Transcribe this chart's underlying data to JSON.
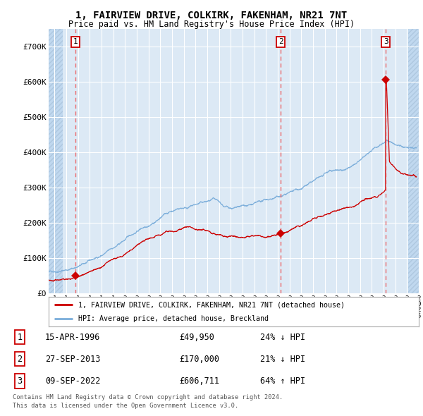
{
  "title": "1, FAIRVIEW DRIVE, COLKIRK, FAKENHAM, NR21 7NT",
  "subtitle": "Price paid vs. HM Land Registry's House Price Index (HPI)",
  "ylim": [
    0,
    750000
  ],
  "yticks": [
    0,
    100000,
    200000,
    300000,
    400000,
    500000,
    600000,
    700000
  ],
  "ytick_labels": [
    "£0",
    "£100K",
    "£200K",
    "£300K",
    "£400K",
    "£500K",
    "£600K",
    "£700K"
  ],
  "xlim_start": 1994.0,
  "xlim_end": 2025.5,
  "background_color": "#ffffff",
  "plot_bg_color": "#dce9f5",
  "grid_color": "#ffffff",
  "hatch_color": "#c0d8ef",
  "sale_dates": [
    1996.29,
    2013.74,
    2022.69
  ],
  "sale_prices": [
    49950,
    170000,
    606711
  ],
  "sale_labels": [
    "1",
    "2",
    "3"
  ],
  "red_line_color": "#cc0000",
  "blue_line_color": "#7aadda",
  "marker_color": "#cc0000",
  "dashed_line_color": "#ee5555",
  "legend_label_red": "1, FAIRVIEW DRIVE, COLKIRK, FAKENHAM, NR21 7NT (detached house)",
  "legend_label_blue": "HPI: Average price, detached house, Breckland",
  "table_rows": [
    {
      "num": "1",
      "date": "15-APR-1996",
      "price": "£49,950",
      "hpi": "24% ↓ HPI"
    },
    {
      "num": "2",
      "date": "27-SEP-2013",
      "price": "£170,000",
      "hpi": "21% ↓ HPI"
    },
    {
      "num": "3",
      "date": "09-SEP-2022",
      "price": "£606,711",
      "hpi": "64% ↑ HPI"
    }
  ],
  "footnote1": "Contains HM Land Registry data © Crown copyright and database right 2024.",
  "footnote2": "This data is licensed under the Open Government Licence v3.0."
}
